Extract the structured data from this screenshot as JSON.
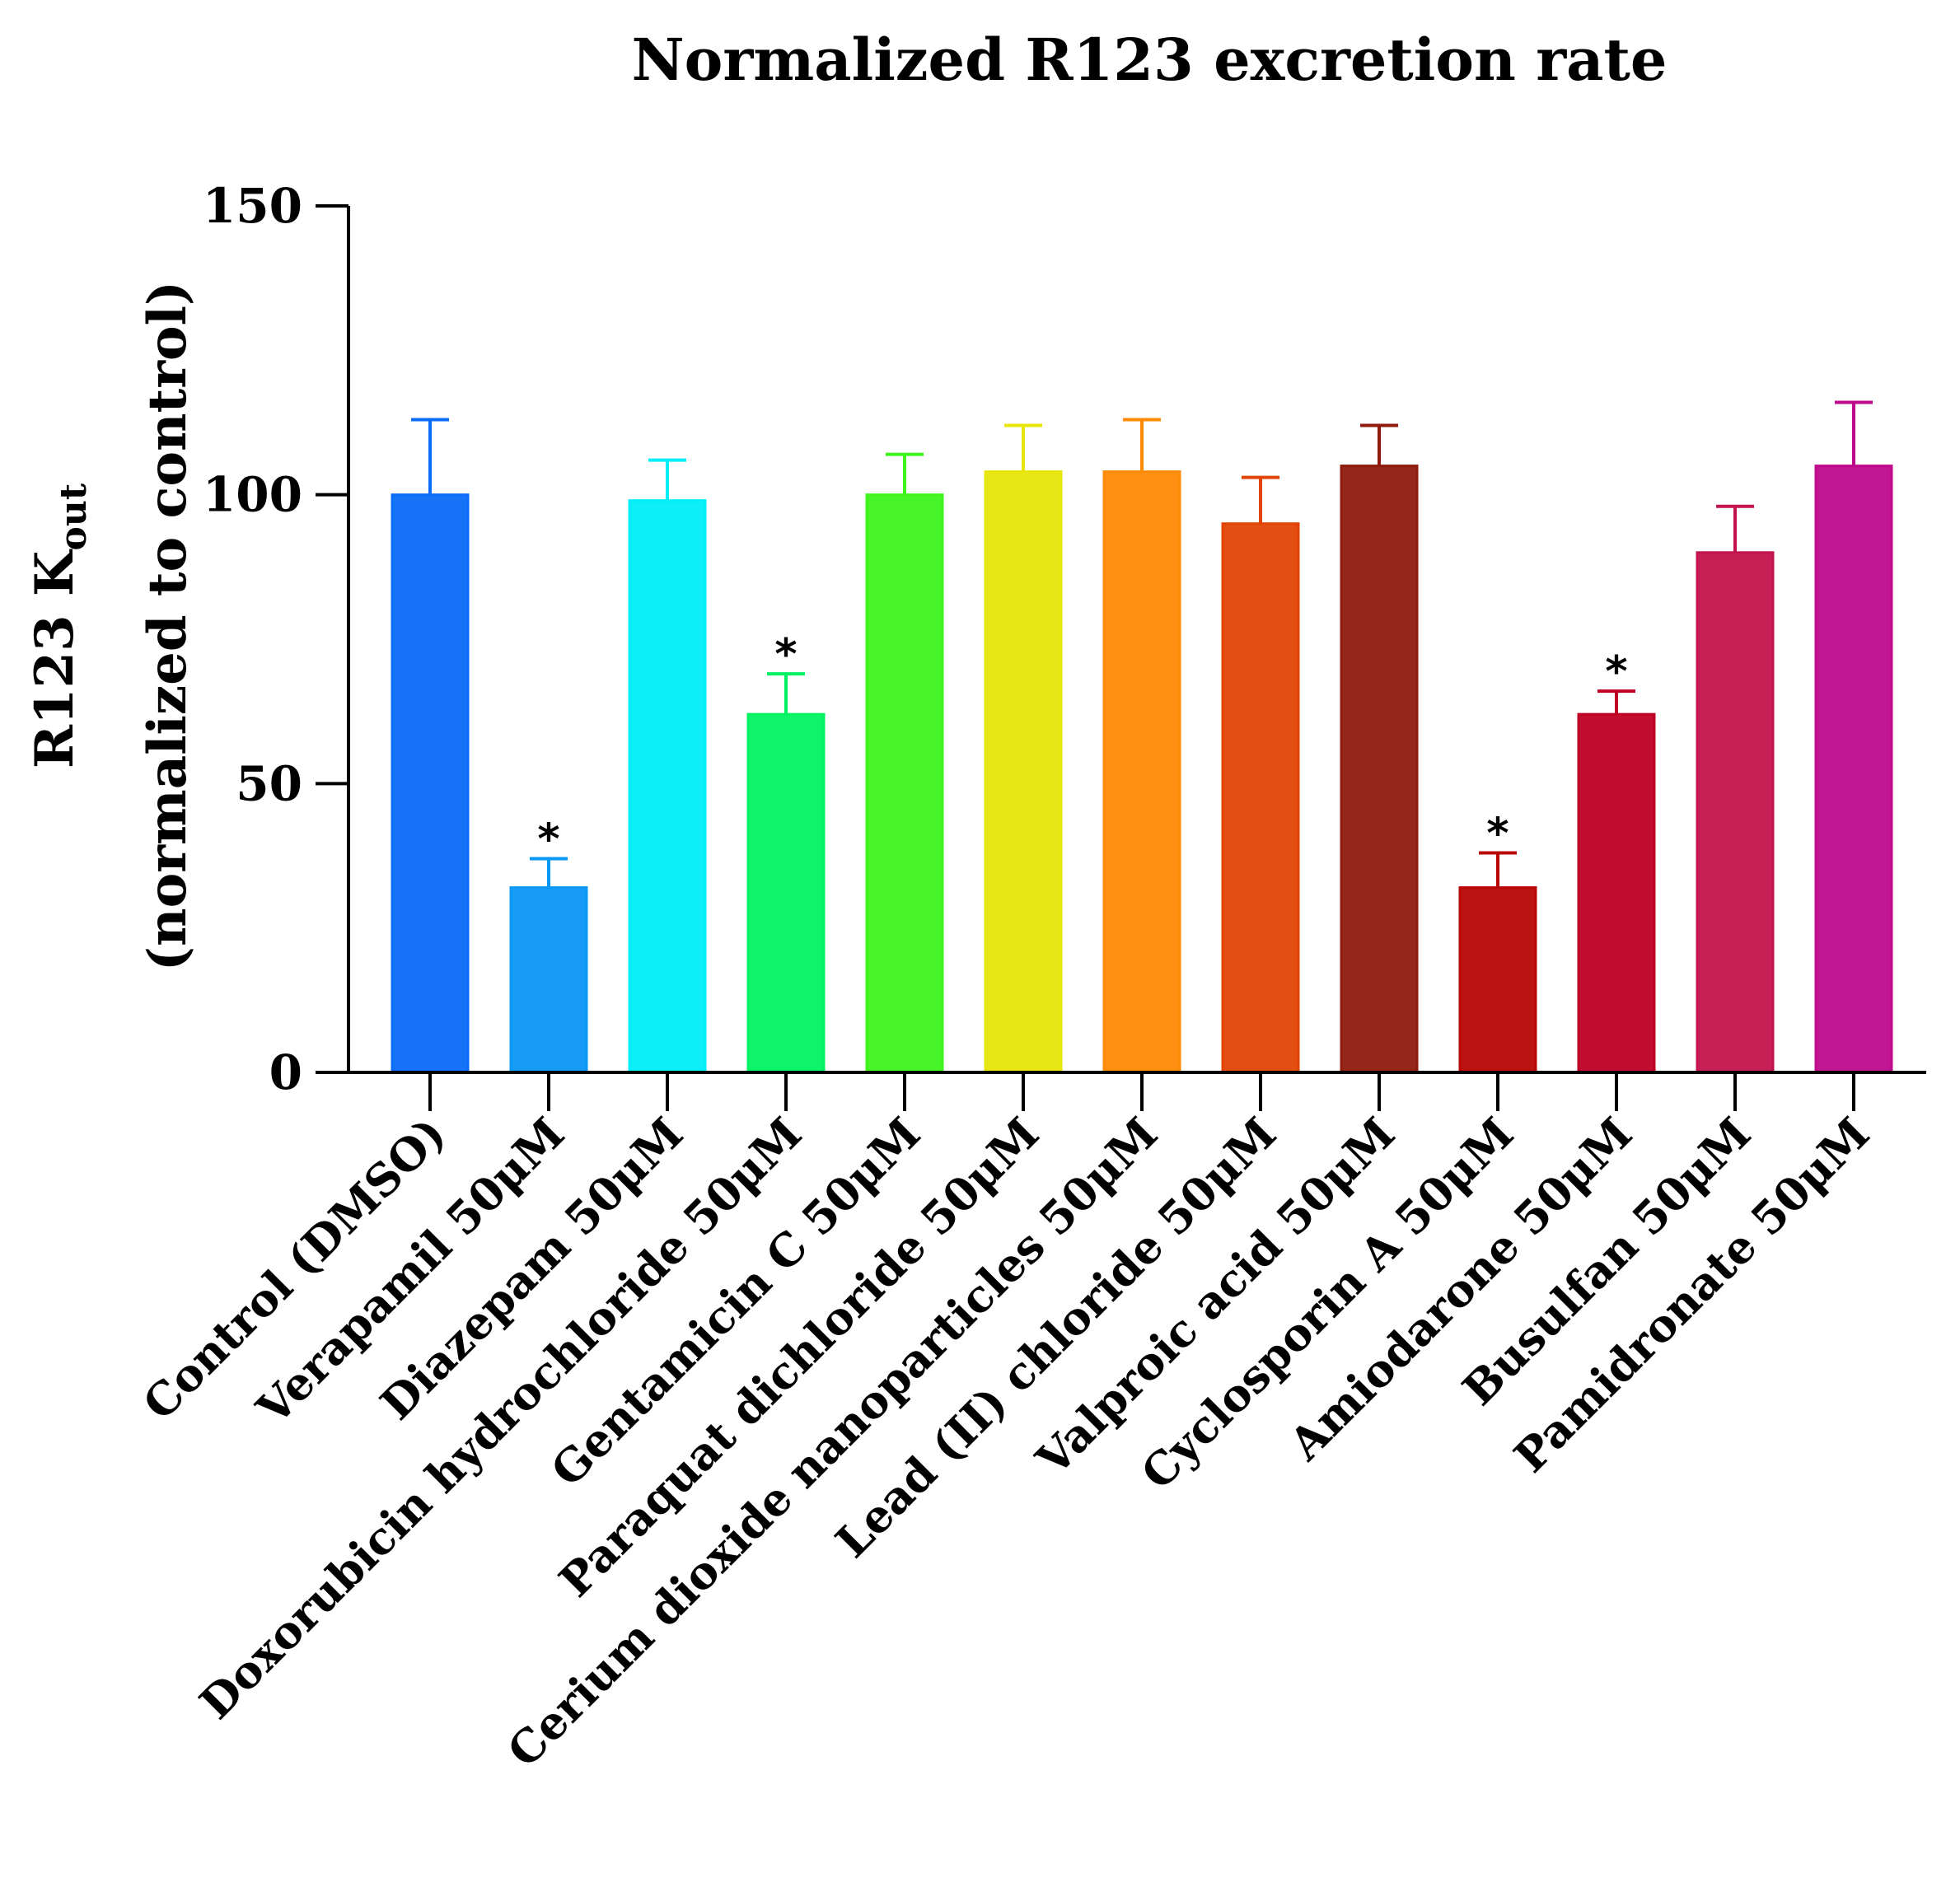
{
  "chart_data": {
    "type": "bar",
    "title": "Normalized R123 excretion rate",
    "ylabel_line1_main": "R123 K",
    "ylabel_line1_sub": "out",
    "ylabel_line2": "(normalized to control)",
    "xlabel": "",
    "ylim": [
      0,
      150
    ],
    "yticks": [
      0,
      50,
      100,
      150
    ],
    "categories": [
      "Control (DMSO)",
      "Verapamil 50μM",
      "Diazepam 50μM",
      "Doxorubicin hydrochloride 50μM",
      "Gentamicin C 50μM",
      "Paraquat dichloride 50μM",
      "Cerium dioxide nanoparticles 50μM",
      "Lead (II) chloride 50μM",
      "Valproic acid 50μM",
      "Cyclosporin A 50μM",
      "Amiodarone 50μM",
      "Busulfan 50μM",
      "Pamidronate 50μM"
    ],
    "values": [
      100,
      32,
      99,
      62,
      100,
      104,
      104,
      95,
      105,
      32,
      62,
      90,
      105
    ],
    "errors": [
      13,
      5,
      7,
      7,
      7,
      8,
      9,
      8,
      7,
      6,
      4,
      8,
      11
    ],
    "significance": [
      "",
      "*",
      "",
      "*",
      "",
      "",
      "",
      "",
      "",
      "*",
      "*",
      "",
      ""
    ],
    "colors": [
      "#0A6CF8",
      "#0A97F6",
      "#00EEF8",
      "#00F262",
      "#3EF41C",
      "#E6E60A",
      "#FF8A05",
      "#E24406",
      "#8E1B0E",
      "#B80505",
      "#BF0025",
      "#C2134D",
      "#BE0A8B"
    ]
  }
}
